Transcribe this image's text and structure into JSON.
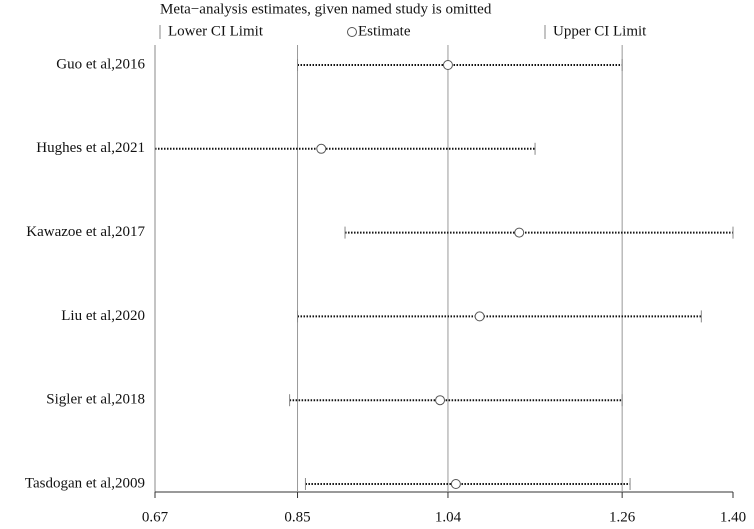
{
  "chart_data": {
    "type": "forest",
    "title": "Meta−analysis estimates, given named study is omitted",
    "categories": [
      "Guo et al,2016",
      "Hughes et al,2021",
      "Kawazoe et al,2017",
      "Liu et al,2020",
      "Sigler et al,2018",
      "Tasdogan et al,2009"
    ],
    "series": [
      {
        "name": "Lower CI Limit",
        "color": "#555555",
        "values": [
          0.85,
          0.67,
          0.91,
          0.85,
          0.84,
          0.86
        ]
      },
      {
        "name": "Estimate",
        "color": "#555555",
        "values": [
          1.04,
          0.88,
          1.13,
          1.08,
          1.03,
          1.05
        ]
      },
      {
        "name": "Upper CI Limit",
        "color": "#555555",
        "values": [
          1.26,
          1.15,
          1.4,
          1.36,
          1.26,
          1.27
        ]
      }
    ],
    "xlim": [
      0.67,
      1.4
    ],
    "xticks": [
      0.67,
      0.85,
      1.04,
      1.26,
      {
        "value": 1.4,
        "label": "1.40"
      }
    ],
    "grid": true
  }
}
